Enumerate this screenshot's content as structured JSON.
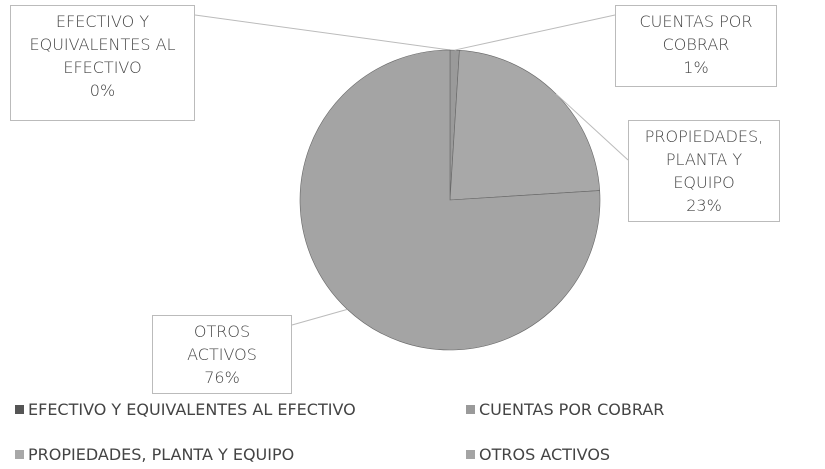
{
  "chart_data": {
    "type": "pie",
    "categories": [
      "EFECTIVO Y EQUIVALENTES AL EFECTIVO",
      "CUENTAS POR COBRAR",
      "PROPIEDADES, PLANTA Y EQUIPO",
      "OTROS ACTIVOS"
    ],
    "values": [
      0,
      1,
      23,
      76
    ],
    "value_labels": [
      "0%",
      "1%",
      "23%",
      "76%"
    ],
    "colors": [
      "#555555",
      "#9a9a9a",
      "#a8a8a8",
      "#a4a4a4"
    ],
    "legend": "bottom"
  }
}
